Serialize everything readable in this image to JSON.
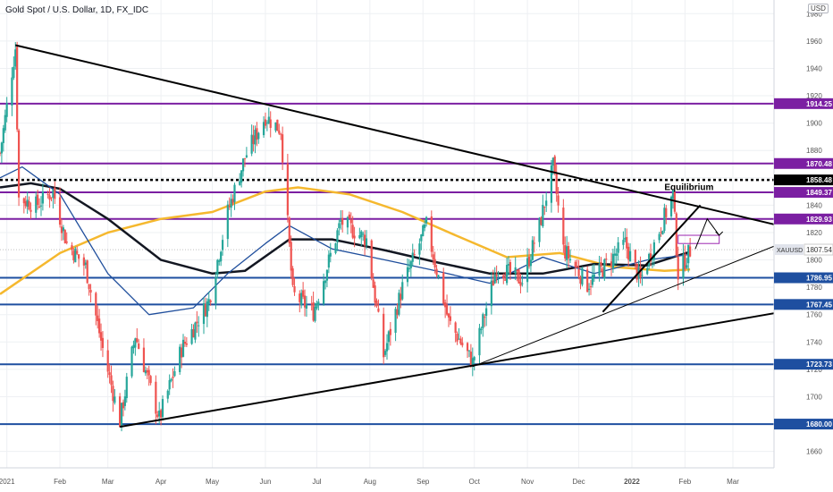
{
  "header": {
    "title": "Gold Spot / U.S. Dollar, 1D, FX_IDC",
    "currency": "USD"
  },
  "chart_data": {
    "type": "candlestick",
    "symbol": "XAUUSD",
    "timeframe": "1D",
    "x_range": [
      "2020-12-28",
      "2022-03-25"
    ],
    "ylim": [
      1648,
      1990
    ],
    "y_ticks": [
      1660,
      1680,
      1700,
      1720,
      1740,
      1760,
      1780,
      1800,
      1820,
      1840,
      1860,
      1880,
      1900,
      1920,
      1940,
      1960,
      1980
    ],
    "x_ticks": [
      {
        "label": "2021",
        "date": "2021-01-01",
        "bold": false
      },
      {
        "label": "Feb",
        "date": "2021-02-01",
        "bold": false
      },
      {
        "label": "Mar",
        "date": "2021-03-01",
        "bold": false
      },
      {
        "label": "Apr",
        "date": "2021-04-01",
        "bold": false
      },
      {
        "label": "May",
        "date": "2021-05-01",
        "bold": false
      },
      {
        "label": "Jun",
        "date": "2021-06-01",
        "bold": false
      },
      {
        "label": "Jul",
        "date": "2021-07-01",
        "bold": false
      },
      {
        "label": "Aug",
        "date": "2021-08-01",
        "bold": false
      },
      {
        "label": "Sep",
        "date": "2021-09-01",
        "bold": false
      },
      {
        "label": "Oct",
        "date": "2021-10-01",
        "bold": false
      },
      {
        "label": "Nov",
        "date": "2021-11-01",
        "bold": false
      },
      {
        "label": "Dec",
        "date": "2021-12-01",
        "bold": false
      },
      {
        "label": "2022",
        "date": "2022-01-01",
        "bold": true
      },
      {
        "label": "Feb",
        "date": "2022-02-01",
        "bold": false
      },
      {
        "label": "Mar",
        "date": "2022-03-01",
        "bold": false
      }
    ],
    "price_path": [
      [
        "2020-12-28",
        1878
      ],
      [
        "2021-01-06",
        1955
      ],
      [
        "2021-01-08",
        1845
      ],
      [
        "2021-01-18",
        1840
      ],
      [
        "2021-01-28",
        1850
      ],
      [
        "2021-02-05",
        1812
      ],
      [
        "2021-02-16",
        1795
      ],
      [
        "2021-02-26",
        1735
      ],
      [
        "2021-03-08",
        1682
      ],
      [
        "2021-03-17",
        1745
      ],
      [
        "2021-03-31",
        1684
      ],
      [
        "2021-04-13",
        1735
      ],
      [
        "2021-04-29",
        1770
      ],
      [
        "2021-05-10",
        1835
      ],
      [
        "2021-05-20",
        1875
      ],
      [
        "2021-06-01",
        1905
      ],
      [
        "2021-06-10",
        1895
      ],
      [
        "2021-06-17",
        1775
      ],
      [
        "2021-06-29",
        1762
      ],
      [
        "2021-07-15",
        1828
      ],
      [
        "2021-07-30",
        1815
      ],
      [
        "2021-08-09",
        1730
      ],
      [
        "2021-08-20",
        1780
      ],
      [
        "2021-09-03",
        1825
      ],
      [
        "2021-09-16",
        1755
      ],
      [
        "2021-09-30",
        1725
      ],
      [
        "2021-10-14",
        1795
      ],
      [
        "2021-10-29",
        1785
      ],
      [
        "2021-11-08",
        1825
      ],
      [
        "2021-11-16",
        1868
      ],
      [
        "2021-11-22",
        1808
      ],
      [
        "2021-12-06",
        1782
      ],
      [
        "2021-12-16",
        1795
      ],
      [
        "2021-12-28",
        1812
      ],
      [
        "2022-01-06",
        1785
      ],
      [
        "2022-01-25",
        1848
      ],
      [
        "2022-01-28",
        1790
      ],
      [
        "2022-02-04",
        1807
      ]
    ],
    "moving_averages": [
      {
        "color": "#f5b82e",
        "points": [
          [
            "2020-12-28",
            1775
          ],
          [
            "2021-02-01",
            1805
          ],
          [
            "2021-03-01",
            1820
          ],
          [
            "2021-04-01",
            1830
          ],
          [
            "2021-05-01",
            1835
          ],
          [
            "2021-06-01",
            1850
          ],
          [
            "2021-06-20",
            1853
          ],
          [
            "2021-07-20",
            1848
          ],
          [
            "2021-08-20",
            1835
          ],
          [
            "2021-09-20",
            1818
          ],
          [
            "2021-10-20",
            1802
          ],
          [
            "2021-11-20",
            1805
          ],
          [
            "2021-12-20",
            1795
          ],
          [
            "2022-01-20",
            1792
          ],
          [
            "2022-02-04",
            1793
          ]
        ]
      },
      {
        "color": "#131722",
        "points": [
          [
            "2020-12-28",
            1853
          ],
          [
            "2021-01-15",
            1856
          ],
          [
            "2021-02-01",
            1852
          ],
          [
            "2021-03-01",
            1830
          ],
          [
            "2021-04-01",
            1800
          ],
          [
            "2021-05-01",
            1790
          ],
          [
            "2021-05-20",
            1792
          ],
          [
            "2021-06-15",
            1815
          ],
          [
            "2021-07-10",
            1815
          ],
          [
            "2021-08-10",
            1807
          ],
          [
            "2021-09-10",
            1798
          ],
          [
            "2021-10-10",
            1790
          ],
          [
            "2021-11-10",
            1790
          ],
          [
            "2021-12-10",
            1797
          ],
          [
            "2022-01-10",
            1796
          ],
          [
            "2022-02-04",
            1806
          ]
        ]
      },
      {
        "color": "#1f4e9c",
        "points": [
          [
            "2020-12-28",
            1860
          ],
          [
            "2021-01-10",
            1868
          ],
          [
            "2021-02-01",
            1848
          ],
          [
            "2021-03-01",
            1790
          ],
          [
            "2021-03-25",
            1760
          ],
          [
            "2021-04-20",
            1765
          ],
          [
            "2021-05-10",
            1790
          ],
          [
            "2021-06-01",
            1812
          ],
          [
            "2021-06-15",
            1825
          ],
          [
            "2021-07-10",
            1808
          ],
          [
            "2021-08-10",
            1800
          ],
          [
            "2021-09-05",
            1793
          ],
          [
            "2021-10-10",
            1783
          ],
          [
            "2021-11-10",
            1802
          ],
          [
            "2021-12-10",
            1790
          ],
          [
            "2022-01-10",
            1800
          ],
          [
            "2022-02-04",
            1804
          ]
        ]
      }
    ],
    "horizontal_levels": [
      {
        "label": "1914.25",
        "value": 1914.25,
        "color": "#7b1fa2",
        "style": "solid"
      },
      {
        "label": "1870.48",
        "value": 1870.48,
        "color": "#7b1fa2",
        "style": "solid"
      },
      {
        "label": "1858.48",
        "value": 1858.48,
        "color": "#000000",
        "style": "dotted"
      },
      {
        "label": "1849.37",
        "value": 1849.37,
        "color": "#7b1fa2",
        "style": "solid"
      },
      {
        "label": "1829.93",
        "value": 1829.93,
        "color": "#7b1fa2",
        "style": "solid"
      },
      {
        "label": "1786.95",
        "value": 1786.95,
        "color": "#1e4fa0",
        "style": "solid"
      },
      {
        "label": "1767.45",
        "value": 1767.45,
        "color": "#1e4fa0",
        "style": "solid"
      },
      {
        "label": "1723.73",
        "value": 1723.73,
        "color": "#1e4fa0",
        "style": "solid"
      },
      {
        "label": "1680.00",
        "value": 1680.0,
        "color": "#1e4fa0",
        "style": "solid"
      }
    ],
    "current_price": {
      "symbol": "XAUUSD",
      "value": 1807.54,
      "label": "1807.54"
    },
    "annotations": [
      {
        "text": "Equilibrium",
        "date": "2022-01-20",
        "value": 1851
      }
    ],
    "trendlines": [
      {
        "from": [
          "2021-01-06",
          1957
        ],
        "to": [
          "2022-03-25",
          1826
        ],
        "width": 2
      },
      {
        "from": [
          "2021-03-08",
          1678
        ],
        "to": [
          "2022-03-25",
          1761
        ],
        "width": 2
      },
      {
        "from": [
          "2021-09-30",
          1722
        ],
        "to": [
          "2022-03-25",
          1810
        ],
        "width": 1
      },
      {
        "from": [
          "2021-12-15",
          1762
        ],
        "to": [
          "2022-02-10",
          1840
        ],
        "width": 2
      }
    ],
    "colors": {
      "up": "#26a69a",
      "down": "#ef5350",
      "grid": "#eef0f3"
    }
  }
}
